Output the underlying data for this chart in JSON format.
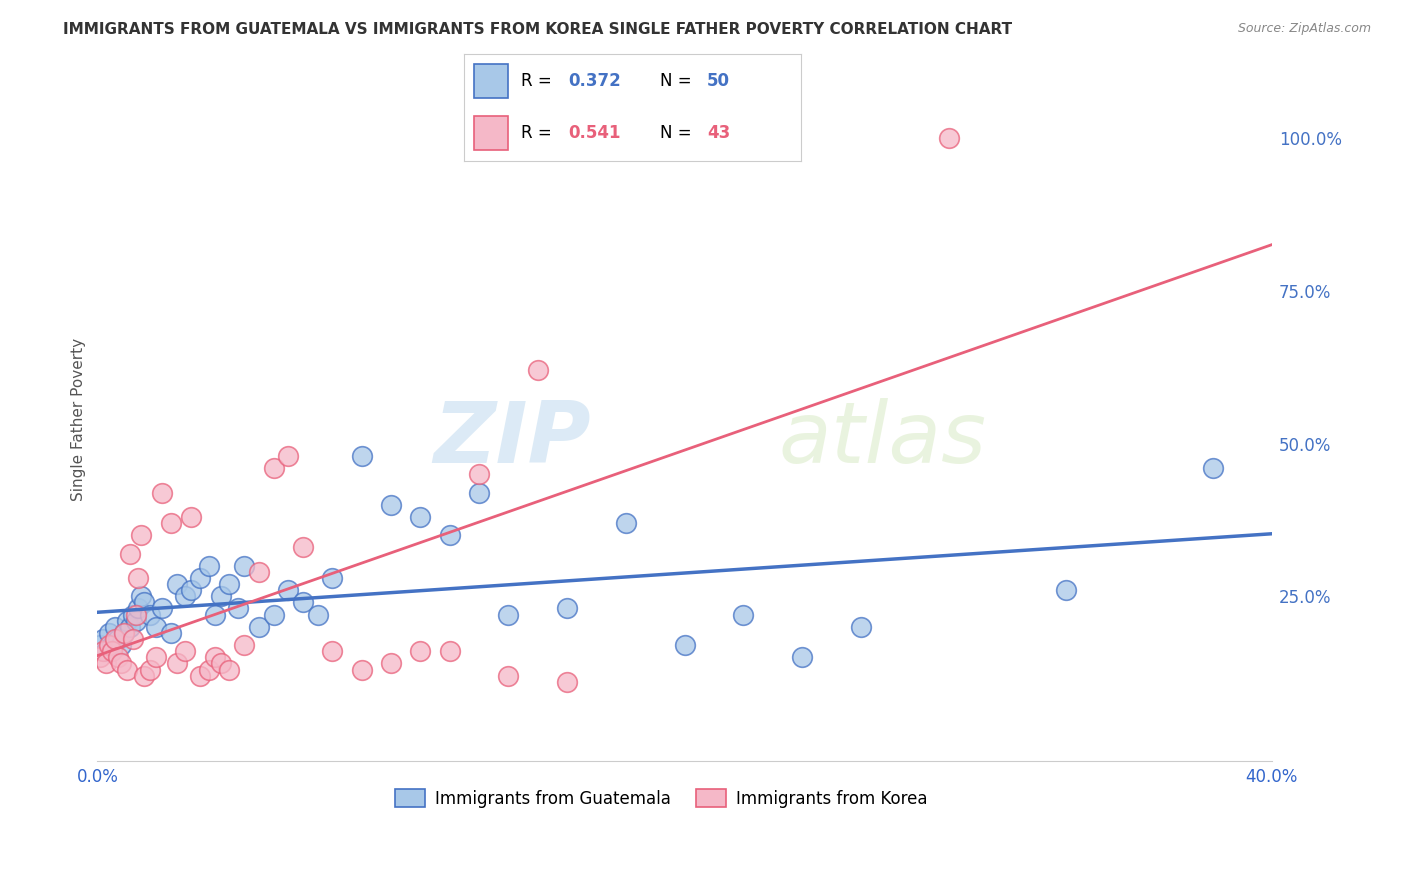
{
  "title": "IMMIGRANTS FROM GUATEMALA VS IMMIGRANTS FROM KOREA SINGLE FATHER POVERTY CORRELATION CHART",
  "source": "Source: ZipAtlas.com",
  "ylabel": "Single Father Poverty",
  "x_legend_label1": "Immigrants from Guatemala",
  "x_legend_label2": "Immigrants from Korea",
  "legend_r1": "R = 0.372",
  "legend_n1": "N = 50",
  "legend_r2": "R = 0.541",
  "legend_n2": "N = 43",
  "color_guatemala": "#a8c8e8",
  "color_korea": "#f5b8c8",
  "line_color_guatemala": "#4472c4",
  "line_color_korea": "#e8607a",
  "watermark_zip": "ZIP",
  "watermark_atlas": "atlas",
  "xlim": [
    0.0,
    0.4
  ],
  "ylim": [
    -0.02,
    1.1
  ],
  "x_ticks": [
    0.0,
    0.1,
    0.2,
    0.3,
    0.4
  ],
  "x_tick_labels": [
    "0.0%",
    "",
    "",
    "",
    "40.0%"
  ],
  "y_ticks": [
    0.0,
    0.25,
    0.5,
    0.75,
    1.0
  ],
  "y_tick_labels_right": [
    "",
    "25.0%",
    "50.0%",
    "75.0%",
    "100.0%"
  ],
  "guatemala_x": [
    0.001,
    0.002,
    0.003,
    0.004,
    0.005,
    0.006,
    0.007,
    0.008,
    0.009,
    0.01,
    0.011,
    0.012,
    0.013,
    0.014,
    0.015,
    0.016,
    0.018,
    0.02,
    0.022,
    0.025,
    0.027,
    0.03,
    0.032,
    0.035,
    0.038,
    0.04,
    0.042,
    0.045,
    0.048,
    0.05,
    0.055,
    0.06,
    0.065,
    0.07,
    0.075,
    0.08,
    0.09,
    0.1,
    0.11,
    0.12,
    0.13,
    0.14,
    0.16,
    0.18,
    0.2,
    0.22,
    0.24,
    0.26,
    0.33,
    0.38
  ],
  "guatemala_y": [
    0.17,
    0.18,
    0.16,
    0.19,
    0.17,
    0.2,
    0.18,
    0.17,
    0.19,
    0.21,
    0.2,
    0.22,
    0.21,
    0.23,
    0.25,
    0.24,
    0.22,
    0.2,
    0.23,
    0.19,
    0.27,
    0.25,
    0.26,
    0.28,
    0.3,
    0.22,
    0.25,
    0.27,
    0.23,
    0.3,
    0.2,
    0.22,
    0.26,
    0.24,
    0.22,
    0.28,
    0.48,
    0.4,
    0.38,
    0.35,
    0.42,
    0.22,
    0.23,
    0.37,
    0.17,
    0.22,
    0.15,
    0.2,
    0.26,
    0.46
  ],
  "korea_x": [
    0.001,
    0.002,
    0.003,
    0.004,
    0.005,
    0.006,
    0.007,
    0.008,
    0.009,
    0.01,
    0.011,
    0.012,
    0.013,
    0.014,
    0.015,
    0.016,
    0.018,
    0.02,
    0.022,
    0.025,
    0.027,
    0.03,
    0.032,
    0.035,
    0.038,
    0.04,
    0.042,
    0.045,
    0.05,
    0.055,
    0.06,
    0.065,
    0.07,
    0.08,
    0.09,
    0.1,
    0.11,
    0.12,
    0.13,
    0.14,
    0.15,
    0.16,
    0.29
  ],
  "korea_y": [
    0.15,
    0.16,
    0.14,
    0.17,
    0.16,
    0.18,
    0.15,
    0.14,
    0.19,
    0.13,
    0.32,
    0.18,
    0.22,
    0.28,
    0.35,
    0.12,
    0.13,
    0.15,
    0.42,
    0.37,
    0.14,
    0.16,
    0.38,
    0.12,
    0.13,
    0.15,
    0.14,
    0.13,
    0.17,
    0.29,
    0.46,
    0.48,
    0.33,
    0.16,
    0.13,
    0.14,
    0.16,
    0.16,
    0.45,
    0.12,
    0.62,
    0.11,
    1.0
  ]
}
